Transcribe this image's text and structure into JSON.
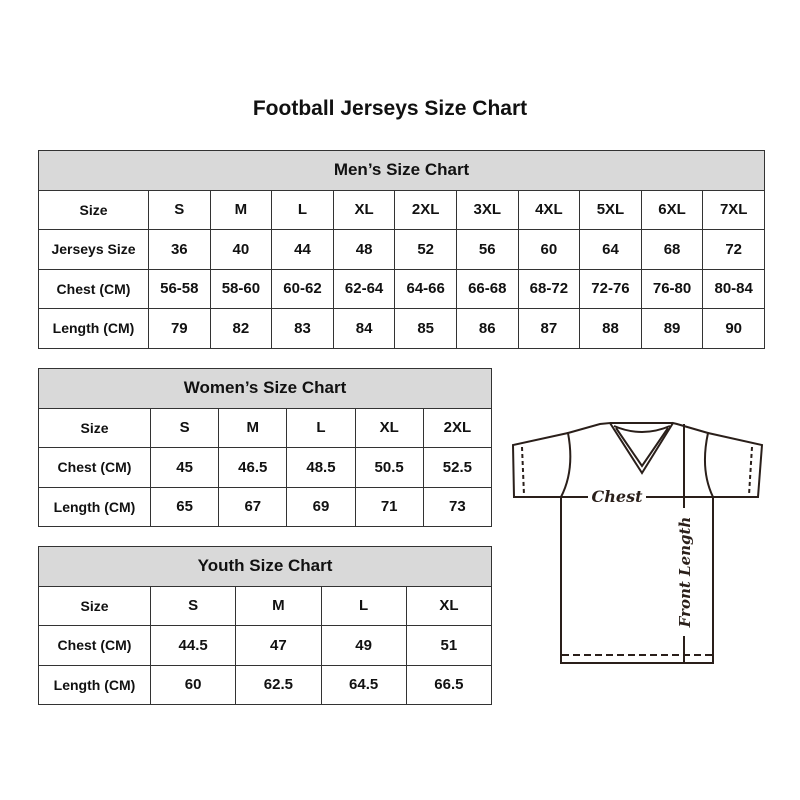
{
  "title": "Football Jerseys Size Chart",
  "tables": {
    "men": {
      "heading": "Men’s Size Chart",
      "rows": [
        [
          "Size",
          "S",
          "M",
          "L",
          "XL",
          "2XL",
          "3XL",
          "4XL",
          "5XL",
          "6XL",
          "7XL"
        ],
        [
          "Jerseys Size",
          "36",
          "40",
          "44",
          "48",
          "52",
          "56",
          "60",
          "64",
          "68",
          "72"
        ],
        [
          "Chest (CM)",
          "56-58",
          "58-60",
          "60-62",
          "62-64",
          "64-66",
          "66-68",
          "68-72",
          "72-76",
          "76-80",
          "80-84"
        ],
        [
          "Length (CM)",
          "79",
          "82",
          "83",
          "84",
          "85",
          "86",
          "87",
          "88",
          "89",
          "90"
        ]
      ]
    },
    "women": {
      "heading": "Women’s Size Chart",
      "rows": [
        [
          "Size",
          "S",
          "M",
          "L",
          "XL",
          "2XL"
        ],
        [
          "Chest (CM)",
          "45",
          "46.5",
          "48.5",
          "50.5",
          "52.5"
        ],
        [
          "Length (CM)",
          "65",
          "67",
          "69",
          "71",
          "73"
        ]
      ]
    },
    "youth": {
      "heading": "Youth Size Chart",
      "rows": [
        [
          "Size",
          "S",
          "M",
          "L",
          "XL"
        ],
        [
          "Chest (CM)",
          "44.5",
          "47",
          "49",
          "51"
        ],
        [
          "Length (CM)",
          "60",
          "62.5",
          "64.5",
          "66.5"
        ]
      ]
    }
  },
  "diagram": {
    "chest_label": "Chest",
    "length_label": "Front Length"
  }
}
